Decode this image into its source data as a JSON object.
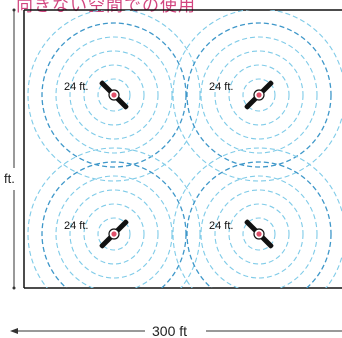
{
  "title": "向きない空間での使用",
  "units": {
    "left_label": "ft.",
    "bottom_label": "300 ft"
  },
  "devices": [
    {
      "label": "24 ft.",
      "rotation": 45
    },
    {
      "label": "24 ft.",
      "rotation": -45
    },
    {
      "label": "24 ft.",
      "rotation": -45
    },
    {
      "label": "24 ft.",
      "rotation": 45
    }
  ],
  "colors": {
    "title": "#d2457f",
    "ring_light": "#7fcbe8",
    "ring_mid": "#3e97c9",
    "device_dot": "#e0506a"
  }
}
